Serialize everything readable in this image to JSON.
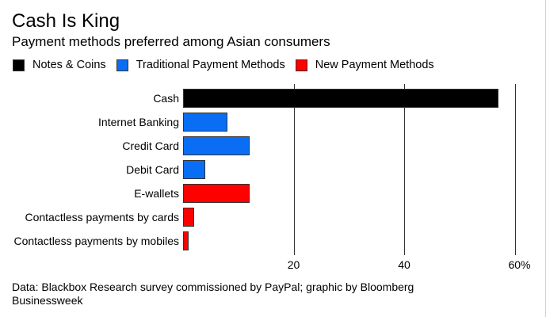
{
  "header": {
    "title": "Cash Is King",
    "subtitle": "Payment methods preferred among Asian consumers"
  },
  "legend": [
    {
      "label": "Notes & Coins",
      "color": "#000000"
    },
    {
      "label": "Traditional Payment Methods",
      "color": "#0A6EF5"
    },
    {
      "label": "New Payment Methods",
      "color": "#FF0000"
    }
  ],
  "axis": {
    "ticks": [
      {
        "value": 20,
        "label": "20"
      },
      {
        "value": 40,
        "label": "40"
      },
      {
        "value": 60,
        "label": "60%"
      }
    ]
  },
  "footer": {
    "source": "Data: Blackbox Research survey commissioned by PayPal; graphic by Bloomberg Businessweek"
  },
  "chart_data": {
    "type": "bar",
    "orientation": "horizontal",
    "title": "Cash Is King",
    "subtitle": "Payment methods preferred among Asian consumers",
    "xlabel": "",
    "ylabel": "",
    "xlim": [
      0,
      60
    ],
    "x_unit": "%",
    "grid": true,
    "legend_position": "top",
    "categories": [
      "Cash",
      "Internet Banking",
      "Credit Card",
      "Debit Card",
      "E-wallets",
      "Contactless payments by cards",
      "Contactless payments by mobiles"
    ],
    "values": [
      57,
      8,
      12,
      4,
      12,
      2,
      1
    ],
    "groups": [
      "Notes & Coins",
      "Traditional Payment Methods",
      "Traditional Payment Methods",
      "Traditional Payment Methods",
      "New Payment Methods",
      "New Payment Methods",
      "New Payment Methods"
    ],
    "colors": [
      "#000000",
      "#0A6EF5",
      "#0A6EF5",
      "#0A6EF5",
      "#FF0000",
      "#FF0000",
      "#FF0000"
    ],
    "source": "Data: Blackbox Research survey commissioned by PayPal; graphic by Bloomberg Businessweek"
  }
}
